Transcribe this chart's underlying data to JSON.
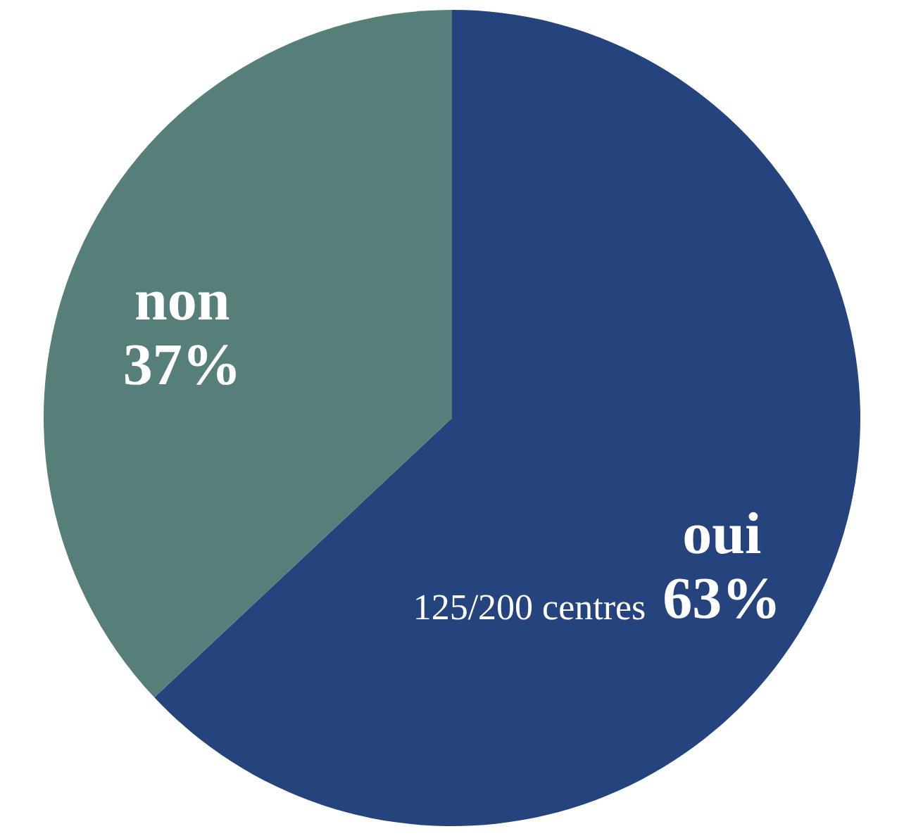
{
  "chart_data": {
    "type": "pie",
    "categories": [
      "oui",
      "non"
    ],
    "values": [
      63,
      37
    ],
    "colors": [
      "#25437d",
      "#577f7a"
    ],
    "value_labels": [
      "63%",
      "37%"
    ],
    "annotations": [
      "125/200 centres"
    ]
  }
}
